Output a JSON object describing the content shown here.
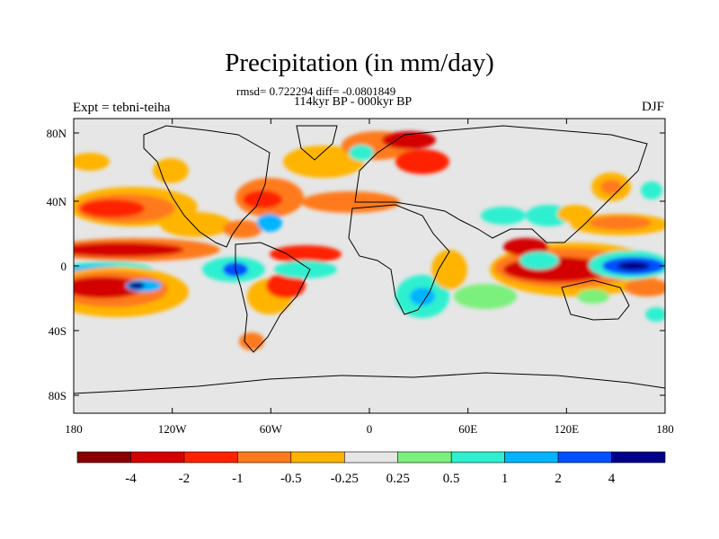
{
  "map": {
    "title": "Precipitation (in mm/day)",
    "stats_line": "rmsd= 0.722294 diff= -0.0801849",
    "period_line": "114kyr BP - 000kyr BP",
    "experiment_label": "Expt = tebni-teiha",
    "season_label": "DJF",
    "lat_ticks": [
      "80N",
      "40N",
      "0",
      "40S",
      "80S"
    ],
    "lon_ticks": [
      "180",
      "120W",
      "60W",
      "0",
      "60E",
      "120E",
      "180"
    ],
    "background_color": "#e6e6e6",
    "coastline_color": "#000000"
  },
  "colorbar": {
    "labels": [
      "-4",
      "-2",
      "-1",
      "-0.5",
      "-0.25",
      "0.25",
      "0.5",
      "1",
      "2",
      "4"
    ],
    "colors": [
      "#8b0000",
      "#d40000",
      "#ff2200",
      "#ff7a1a",
      "#ffb400",
      "#e6e6e6",
      "#7cf07c",
      "#2ef0d0",
      "#00b4ff",
      "#0050ff",
      "#00008b"
    ]
  }
}
